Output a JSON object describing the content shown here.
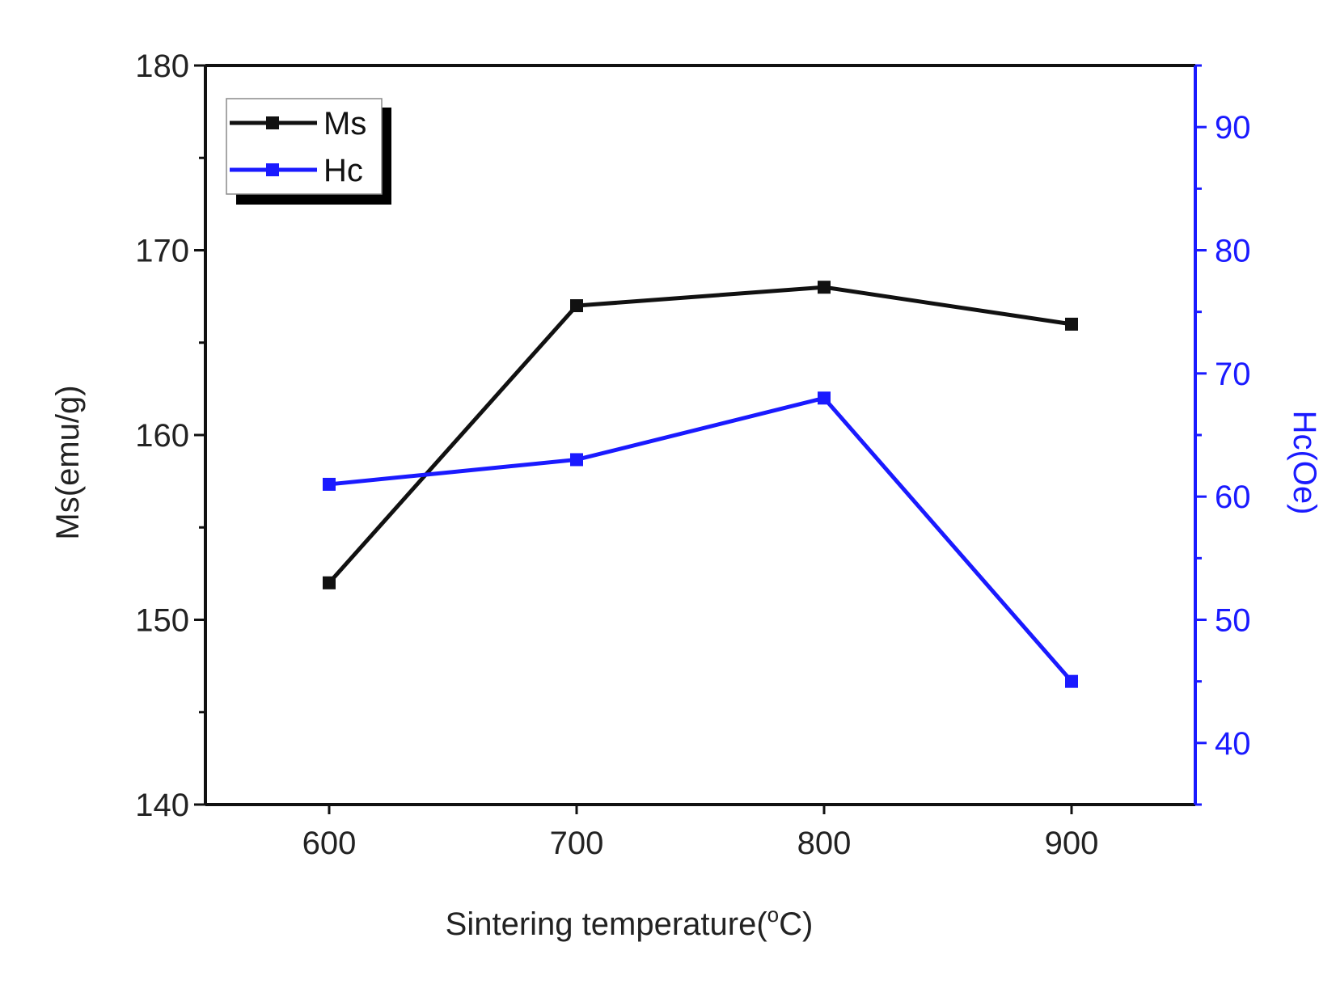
{
  "chart_data": {
    "type": "line",
    "title": "",
    "x": [
      600,
      700,
      800,
      900
    ],
    "xlabel": {
      "main": "Sintering temperature(",
      "sup": "o",
      "end": "C)"
    },
    "xlim": [
      550,
      950
    ],
    "xticks": [
      "600",
      "700",
      "800",
      "900"
    ],
    "y_left": {
      "label": "Ms(emu/g)",
      "lim": [
        140,
        180
      ],
      "ticks": [
        "140",
        "150",
        "160",
        "170",
        "180"
      ]
    },
    "y_right": {
      "label": "Hc(Oe)",
      "lim": [
        35,
        95
      ],
      "ticks": [
        "40",
        "50",
        "60",
        "70",
        "80",
        "90"
      ],
      "color": "#1a1aff"
    },
    "series": [
      {
        "name": "Ms",
        "axis": "left",
        "values": [
          152,
          167,
          168,
          166
        ],
        "color": "#111111"
      },
      {
        "name": "Hc",
        "axis": "right",
        "values": [
          61,
          63,
          68,
          45
        ],
        "color": "#1a1aff"
      }
    ],
    "legend": {
      "position": "top-left",
      "items": [
        "Ms",
        "Hc"
      ]
    }
  }
}
